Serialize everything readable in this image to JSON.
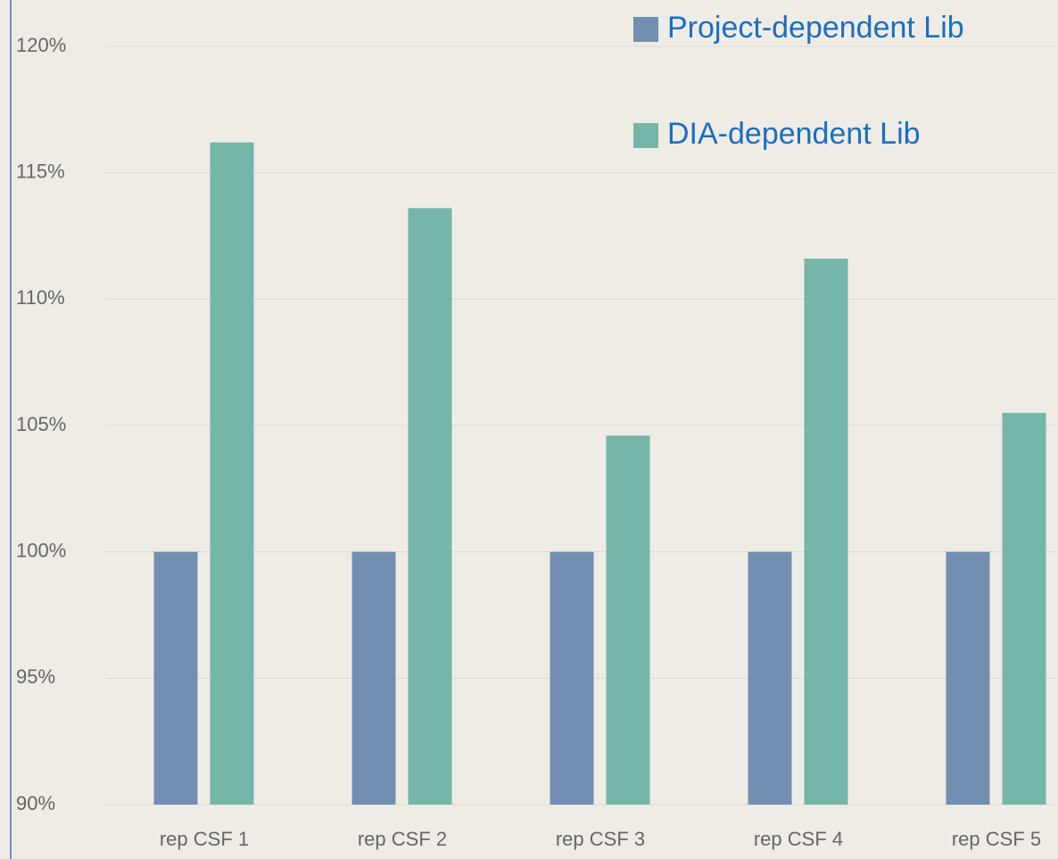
{
  "chart_data": {
    "type": "bar",
    "categories": [
      "rep CSF 1",
      "rep CSF 2",
      "rep CSF 3",
      "rep CSF 4",
      "rep CSF 5"
    ],
    "series": [
      {
        "name": "Project-dependent Lib",
        "color": "#728fb2",
        "values": [
          100,
          100,
          100,
          100,
          100
        ]
      },
      {
        "name": "DIA-dependent Lib",
        "color": "#76b6a9",
        "values": [
          116.2,
          113.6,
          104.6,
          111.6,
          105.5
        ]
      }
    ],
    "ylim": [
      90,
      120
    ],
    "yticks": [
      {
        "value": 90,
        "label": "90%"
      },
      {
        "value": 95,
        "label": "95%"
      },
      {
        "value": 100,
        "label": "100%"
      },
      {
        "value": 105,
        "label": "105%"
      },
      {
        "value": 110,
        "label": "110%"
      },
      {
        "value": 115,
        "label": "115%"
      },
      {
        "value": 120,
        "label": "120%"
      }
    ],
    "grid": true,
    "legend": "top-right"
  }
}
